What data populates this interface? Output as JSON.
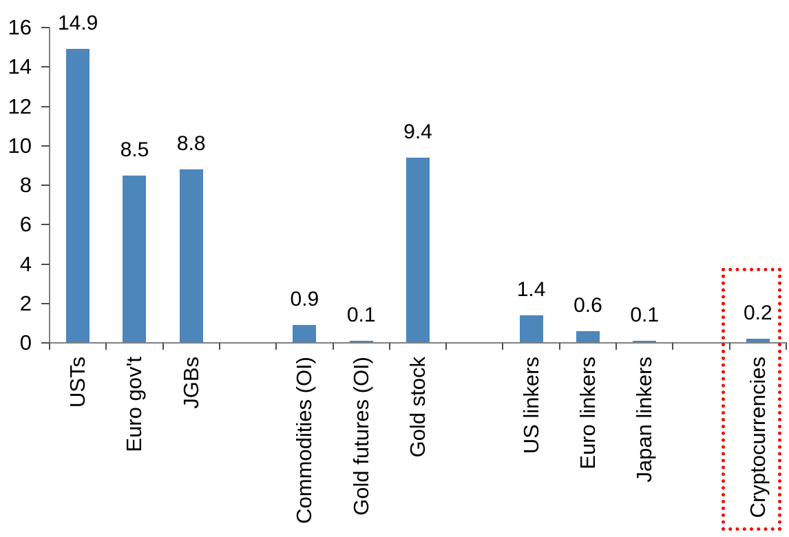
{
  "chart_data": {
    "type": "bar",
    "title": "",
    "categories": [
      "USTs",
      "Euro gov't",
      "JGBs",
      "Commodities (OI)",
      "Gold futures (OI)",
      "Gold stock",
      "US linkers",
      "Euro linkers",
      "Japan linkers",
      "Cryptocurrencies"
    ],
    "values": [
      14.9,
      8.5,
      8.8,
      0.9,
      0.1,
      9.4,
      1.4,
      0.6,
      0.1,
      0.2
    ],
    "data_labels": [
      "14.9",
      "8.5",
      "8.8",
      "0.9",
      "0.1",
      "9.4",
      "1.4",
      "0.6",
      "0.1",
      "0.2"
    ],
    "slot_indices": [
      0,
      1,
      2,
      4,
      5,
      6,
      8,
      9,
      10,
      12
    ],
    "total_slots": 13,
    "y_ticks": [
      "0",
      "2",
      "4",
      "6",
      "8",
      "10",
      "12",
      "14",
      "16"
    ],
    "ylim": [
      0,
      16
    ],
    "xlabel": "",
    "ylabel": "",
    "legend": "none",
    "grid": "off",
    "bar_color": "#4d86bb",
    "axis_color": "#808080",
    "tick_color": "#4d4d4d",
    "text_color": "#000000",
    "highlight": {
      "category": "Cryptocurrencies",
      "box_style": "dotted",
      "box_color": "#ff0000"
    }
  }
}
